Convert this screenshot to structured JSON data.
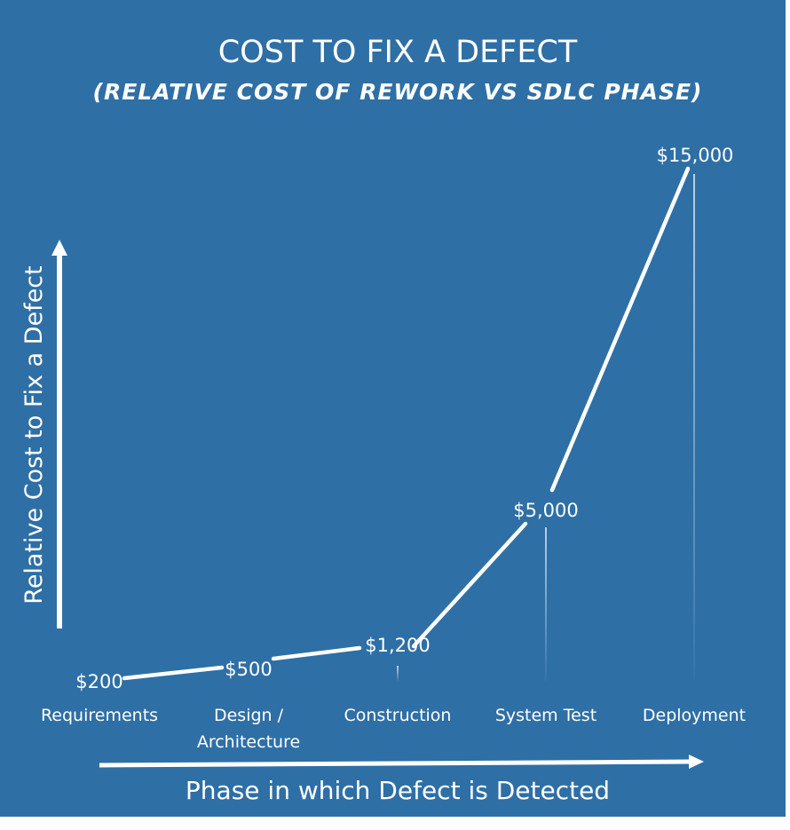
{
  "chart_data": {
    "type": "line",
    "title": "COST TO FIX A DEFECT",
    "subtitle": "(RELATIVE COST OF REWORK VS SDLC PHASE)",
    "xlabel": "Phase in which Defect is Detected",
    "ylabel": "Relative Cost to Fix a Defect",
    "categories": [
      [
        "Requirements"
      ],
      [
        "Design /",
        "Architecture"
      ],
      [
        "Construction"
      ],
      [
        "System Test"
      ],
      [
        "Deployment"
      ]
    ],
    "values": [
      200,
      500,
      1200,
      5000,
      15000
    ],
    "data_labels": [
      "$200",
      "$500",
      "$1,200",
      "$5,000",
      "$15,000"
    ],
    "ylim": [
      0,
      15000
    ],
    "grid": false,
    "legend": "none",
    "colors": {
      "background": "#2e6fa6",
      "line": "#ffffff",
      "text": "#ffffff"
    }
  }
}
